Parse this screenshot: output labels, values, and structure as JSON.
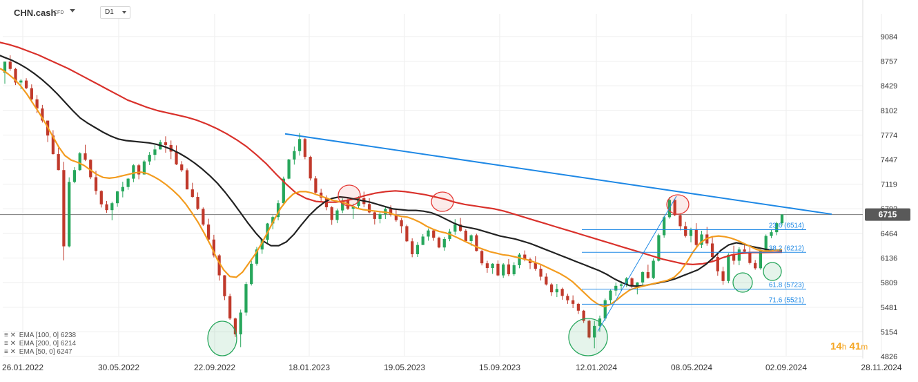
{
  "header": {
    "symbol": "CHN.cash",
    "symbol_type": "CFD",
    "timeframe": "D1"
  },
  "legend": [
    {
      "icons": "≡ ✕",
      "text": "EMA [100, 0] 6238"
    },
    {
      "icons": "≡ ✕",
      "text": "EMA [200, 0] 6214"
    },
    {
      "icons": "≡ ✕",
      "text": "EMA [50, 0] 6247"
    }
  ],
  "countdown": {
    "hours": "14",
    "h_unit": "h",
    "minutes": "41",
    "m_unit": "m"
  },
  "colors": {
    "candle_up": "#26a65b",
    "candle_down": "#c0392b",
    "ema50": "#f39c1f",
    "ema100": "#222222",
    "ema200": "#d9312b",
    "trendline": "#1e88e5",
    "fib": "#1e88e5",
    "ellipse_red": "#e53935",
    "ellipse_green": "#26a65b",
    "price_tag": "#595959"
  },
  "chart_data": {
    "type": "candlestick",
    "x_ticks": [
      "26.01.2022",
      "30.05.2022",
      "22.09.2022",
      "18.01.2023",
      "19.05.2023",
      "15.09.2023",
      "12.01.2024",
      "08.05.2024",
      "02.09.2024",
      "28.11.2024"
    ],
    "y_ticks": [
      9084,
      8757,
      8429,
      8102,
      7774,
      7447,
      7119,
      6792,
      6464,
      6136,
      5809,
      5481,
      5154,
      4826
    ],
    "ylim": [
      4826,
      9084
    ],
    "last_price": 6715,
    "series": [
      {
        "name": "EMA [50, 0]",
        "color_key": "ema50"
      },
      {
        "name": "EMA [100, 0]",
        "color_key": "ema100"
      },
      {
        "name": "EMA [200, 0]",
        "color_key": "ema200"
      }
    ],
    "candles": [
      [
        8602,
        8751,
        8456,
        8750
      ],
      [
        8750,
        8835,
        8629,
        8654
      ],
      [
        8654,
        8668,
        8439,
        8473
      ],
      [
        8473,
        8518,
        8383,
        8499
      ],
      [
        8499,
        8530,
        8384,
        8397
      ],
      [
        8397,
        8448,
        8206,
        8249
      ],
      [
        8249,
        8305,
        8065,
        8127
      ],
      [
        8127,
        8175,
        7940,
        7966
      ],
      [
        7966,
        7966,
        7680,
        7767
      ],
      [
        7767,
        7838,
        7514,
        7520
      ],
      [
        7520,
        7605,
        7304,
        7307
      ],
      [
        7307,
        7417,
        6104,
        6292
      ],
      [
        6292,
        7210,
        6277,
        7149
      ],
      [
        7149,
        7346,
        7132,
        7307
      ],
      [
        7307,
        7546,
        7297,
        7530
      ],
      [
        7530,
        7644,
        7426,
        7444
      ],
      [
        7444,
        7450,
        7187,
        7212
      ],
      [
        7212,
        7298,
        6981,
        7029
      ],
      [
        7029,
        7038,
        6809,
        6851
      ],
      [
        6851,
        6896,
        6737,
        6774
      ],
      [
        6774,
        6887,
        6639,
        6866
      ],
      [
        6866,
        7029,
        6818,
        7023
      ],
      [
        7023,
        7152,
        6944,
        7082
      ],
      [
        7082,
        7202,
        7045,
        7193
      ],
      [
        7193,
        7386,
        7146,
        7371
      ],
      [
        7371,
        7392,
        7185,
        7249
      ],
      [
        7249,
        7440,
        7247,
        7422
      ],
      [
        7422,
        7547,
        7375,
        7510
      ],
      [
        7510,
        7640,
        7435,
        7582
      ],
      [
        7582,
        7707,
        7580,
        7677
      ],
      [
        7677,
        7757,
        7538,
        7641
      ],
      [
        7641,
        7701,
        7454,
        7553
      ],
      [
        7553,
        7636,
        7375,
        7382
      ],
      [
        7382,
        7426,
        7282,
        7305
      ],
      [
        7305,
        7330,
        7050,
        7050
      ],
      [
        7050,
        7138,
        6940,
        6950
      ],
      [
        6950,
        7010,
        6775,
        6790
      ],
      [
        6790,
        6810,
        6565,
        6582
      ],
      [
        6582,
        6660,
        6348,
        6382
      ],
      [
        6382,
        6446,
        6145,
        6172
      ],
      [
        6172,
        6188,
        5836,
        5906
      ],
      [
        5906,
        5909,
        5576,
        5628
      ],
      [
        5628,
        5661,
        5314,
        5332
      ],
      [
        5332,
        5343,
        5085,
        5120
      ],
      [
        5120,
        5450,
        4950,
        5410
      ],
      [
        5410,
        5820,
        5370,
        5790
      ],
      [
        5790,
        6100,
        5770,
        6060
      ],
      [
        6060,
        6284,
        6035,
        6250
      ],
      [
        6250,
        6393,
        6192,
        6380
      ],
      [
        6380,
        6603,
        6320,
        6596
      ],
      [
        6596,
        6703,
        6518,
        6682
      ],
      [
        6682,
        6904,
        6638,
        6866
      ],
      [
        6866,
        7220,
        6854,
        7193
      ],
      [
        7193,
        7456,
        7186,
        7448
      ],
      [
        7448,
        7620,
        7380,
        7560
      ],
      [
        7560,
        7800,
        7500,
        7720
      ],
      [
        7720,
        7733,
        7452,
        7483
      ],
      [
        7483,
        7498,
        7168,
        7196
      ],
      [
        7196,
        7226,
        6997,
        7007
      ],
      [
        7007,
        7058,
        6880,
        6940
      ],
      [
        6940,
        6970,
        6772,
        6812
      ],
      [
        6812,
        6827,
        6578,
        6643
      ],
      [
        6643,
        6795,
        6600,
        6770
      ],
      [
        6770,
        6930,
        6733,
        6901
      ],
      [
        6901,
        6950,
        6775,
        6793
      ],
      [
        6793,
        6860,
        6657,
        6830
      ],
      [
        6830,
        6958,
        6800,
        6933
      ],
      [
        6933,
        7020,
        6812,
        6855
      ],
      [
        6855,
        6932,
        6730,
        6744
      ],
      [
        6744,
        6764,
        6583,
        6657
      ],
      [
        6657,
        6758,
        6598,
        6720
      ],
      [
        6720,
        6830,
        6656,
        6790
      ],
      [
        6790,
        6838,
        6688,
        6713
      ],
      [
        6713,
        6790,
        6620,
        6640
      ],
      [
        6640,
        6670,
        6468,
        6560
      ],
      [
        6560,
        6581,
        6350,
        6359
      ],
      [
        6359,
        6398,
        6147,
        6187
      ],
      [
        6187,
        6350,
        6150,
        6310
      ],
      [
        6310,
        6454,
        6310,
        6422
      ],
      [
        6422,
        6530,
        6367,
        6503
      ],
      [
        6503,
        6522,
        6366,
        6406
      ],
      [
        6406,
        6420,
        6267,
        6277
      ],
      [
        6277,
        6418,
        6234,
        6390
      ],
      [
        6390,
        6524,
        6360,
        6487
      ],
      [
        6487,
        6654,
        6446,
        6582
      ],
      [
        6582,
        6670,
        6484,
        6500
      ],
      [
        6500,
        6520,
        6353,
        6362
      ],
      [
        6362,
        6451,
        6299,
        6439
      ],
      [
        6439,
        6459,
        6224,
        6230
      ],
      [
        6230,
        6245,
        6038,
        6066
      ],
      [
        6066,
        6100,
        5940,
        6003
      ],
      [
        6003,
        6067,
        5925,
        6060
      ],
      [
        6060,
        6105,
        5892,
        5905
      ],
      [
        5905,
        6068,
        5872,
        6051
      ],
      [
        6051,
        6124,
        5893,
        5920
      ],
      [
        5920,
        6080,
        5898,
        6040
      ],
      [
        6040,
        6205,
        6000,
        6182
      ],
      [
        6182,
        6237,
        6093,
        6120
      ],
      [
        6120,
        6142,
        5989,
        6068
      ],
      [
        6068,
        6160,
        5968,
        5994
      ],
      [
        5994,
        6050,
        5837,
        5888
      ],
      [
        5888,
        5934,
        5770,
        5785
      ],
      [
        5785,
        5804,
        5632,
        5680
      ],
      [
        5680,
        5791,
        5616,
        5725
      ],
      [
        5725,
        5742,
        5581,
        5632
      ],
      [
        5632,
        5661,
        5526,
        5574
      ],
      [
        5574,
        5639,
        5470,
        5526
      ],
      [
        5526,
        5540,
        5391,
        5435
      ],
      [
        5435,
        5445,
        5272,
        5300
      ],
      [
        5300,
        5314,
        5064,
        5079
      ],
      [
        5079,
        5300,
        4934,
        5232
      ],
      [
        5232,
        5370,
        5156,
        5331
      ],
      [
        5331,
        5597,
        5302,
        5575
      ],
      [
        5575,
        5715,
        5528,
        5703
      ],
      [
        5703,
        5809,
        5635,
        5766
      ],
      [
        5766,
        5828,
        5700,
        5786
      ],
      [
        5786,
        5884,
        5748,
        5865
      ],
      [
        5865,
        5880,
        5735,
        5756
      ],
      [
        5756,
        5815,
        5652,
        5811
      ],
      [
        5811,
        5960,
        5769,
        5948
      ],
      [
        5948,
        6048,
        5862,
        5871
      ],
      [
        5871,
        6130,
        5856,
        6100
      ],
      [
        6100,
        6460,
        6090,
        6440
      ],
      [
        6440,
        6700,
        6407,
        6680
      ],
      [
        6680,
        6950,
        6660,
        6910
      ],
      [
        6910,
        6922,
        6693,
        6707
      ],
      [
        6707,
        6730,
        6505,
        6560
      ],
      [
        6560,
        6620,
        6410,
        6430
      ],
      [
        6430,
        6540,
        6346,
        6520
      ],
      [
        6520,
        6600,
        6290,
        6310
      ],
      [
        6310,
        6500,
        6270,
        6450
      ],
      [
        6450,
        6550,
        6300,
        6330
      ],
      [
        6330,
        6430,
        6100,
        6150
      ],
      [
        6150,
        6200,
        5900,
        5960
      ],
      [
        5960,
        6020,
        5780,
        5830
      ],
      [
        5830,
        6200,
        5800,
        6180
      ],
      [
        6180,
        6300,
        6050,
        6100
      ],
      [
        6100,
        6280,
        6040,
        6250
      ],
      [
        6250,
        6330,
        6200,
        6220
      ],
      [
        6220,
        6280,
        6050,
        6070
      ],
      [
        6070,
        6110,
        5980,
        6000
      ],
      [
        6000,
        6250,
        5980,
        6230
      ],
      [
        6230,
        6450,
        6220,
        6430
      ],
      [
        6430,
        6520,
        6400,
        6480
      ],
      [
        6480,
        6620,
        6440,
        6600
      ],
      [
        6600,
        6720,
        6570,
        6715
      ]
    ],
    "ema50": [
      8700,
      8680,
      8650,
      8590,
      8520,
      8430,
      8320,
      8190,
      8060,
      7920,
      7770,
      7620,
      7500,
      7440,
      7410,
      7370,
      7310,
      7250,
      7210,
      7200,
      7210,
      7230,
      7250,
      7270,
      7280,
      7260,
      7220,
      7170,
      7110,
      7040,
      6960,
      6860,
      6740,
      6610,
      6460,
      6300,
      6120,
      5980,
      5890,
      5880,
      5950,
      6070,
      6190,
      6330,
      6490,
      6650,
      6800,
      6910,
      6990,
      7020,
      7020,
      7000,
      6970,
      6940,
      6910,
      6890,
      6870,
      6840,
      6800,
      6780,
      6770,
      6760,
      6750,
      6740,
      6710,
      6690,
      6680,
      6650,
      6610,
      6560,
      6520,
      6490,
      6470,
      6440,
      6400,
      6360,
      6320,
      6280,
      6250,
      6220,
      6200,
      6180,
      6170,
      6150,
      6130,
      6110,
      6080,
      6050,
      6010,
      5970,
      5930,
      5880,
      5820,
      5740,
      5660,
      5580,
      5520,
      5490,
      5520,
      5580,
      5650,
      5710,
      5740,
      5760,
      5780,
      5800,
      5820,
      5840,
      5880,
      5960,
      6080,
      6220,
      6330,
      6390,
      6420,
      6430,
      6420,
      6400,
      6370,
      6330,
      6290,
      6250,
      6230,
      6230,
      6240,
      6247
    ],
    "ema100": [
      8870,
      8850,
      8810,
      8770,
      8720,
      8660,
      8590,
      8510,
      8420,
      8320,
      8210,
      8100,
      8000,
      7930,
      7870,
      7810,
      7760,
      7720,
      7700,
      7690,
      7680,
      7670,
      7650,
      7620,
      7580,
      7530,
      7470,
      7400,
      7320,
      7230,
      7130,
      7010,
      6880,
      6740,
      6600,
      6470,
      6360,
      6300,
      6300,
      6350,
      6450,
      6580,
      6700,
      6800,
      6880,
      6930,
      6950,
      6940,
      6920,
      6900,
      6880,
      6850,
      6820,
      6790,
      6780,
      6770,
      6770,
      6760,
      6740,
      6700,
      6650,
      6600,
      6560,
      6540,
      6520,
      6490,
      6460,
      6430,
      6410,
      6390,
      6360,
      6330,
      6290,
      6250,
      6210,
      6170,
      6130,
      6090,
      6050,
      6010,
      5970,
      5920,
      5860,
      5810,
      5770,
      5760,
      5770,
      5790,
      5810,
      5830,
      5860,
      5900,
      5940,
      5980,
      6050,
      6140,
      6240,
      6310,
      6340,
      6320,
      6290,
      6270,
      6250,
      6240,
      6238
    ],
    "ema200": [
      9040,
      9010,
      8980,
      8940,
      8890,
      8840,
      8780,
      8720,
      8660,
      8590,
      8520,
      8450,
      8380,
      8310,
      8240,
      8190,
      8140,
      8100,
      8070,
      8040,
      8010,
      7970,
      7920,
      7860,
      7790,
      7710,
      7620,
      7510,
      7390,
      7250,
      7120,
      7000,
      6930,
      6890,
      6880,
      6880,
      6900,
      6930,
      6970,
      7000,
      7020,
      7030,
      7020,
      7000,
      6980,
      6950,
      6920,
      6880,
      6850,
      6830,
      6810,
      6790,
      6760,
      6720,
      6680,
      6640,
      6600,
      6560,
      6520,
      6480,
      6440,
      6400,
      6360,
      6320,
      6280,
      6240,
      6200,
      6160,
      6120,
      6090,
      6060,
      6050,
      6060,
      6090,
      6140,
      6180,
      6200,
      6210,
      6210,
      6212,
      6214
    ]
  },
  "annotations": {
    "fib_levels": [
      {
        "label": "23.6 (6514)",
        "value": 6514
      },
      {
        "label": "38.2 (6212)",
        "value": 6212
      },
      {
        "label": "61.8 (5723)",
        "value": 5723
      },
      {
        "label": "71.6 (5521)",
        "value": 5521
      }
    ],
    "trendline": {
      "from_date": "12.2022",
      "from_value": 7790,
      "to_date": "11.2024",
      "to_value": 6720
    }
  }
}
